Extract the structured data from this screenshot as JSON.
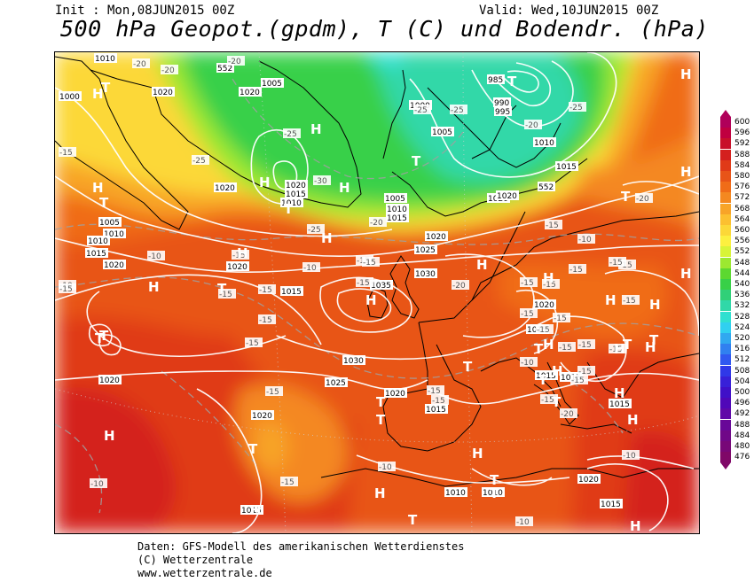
{
  "header": {
    "init": "Init : Mon,08JUN2015 00Z",
    "valid": "Valid: Wed,10JUN2015 00Z",
    "title": "500 hPa Geopot.(gpdm), T (C) und Bodendr. (hPa)"
  },
  "legend": {
    "levels": [
      {
        "value": "600",
        "color": "#b0005a"
      },
      {
        "value": "596",
        "color": "#c00040"
      },
      {
        "value": "592",
        "color": "#c8102a"
      },
      {
        "value": "588",
        "color": "#d4201e"
      },
      {
        "value": "584",
        "color": "#e03a18"
      },
      {
        "value": "580",
        "color": "#e85418"
      },
      {
        "value": "576",
        "color": "#f06c18"
      },
      {
        "value": "572",
        "color": "#f48820"
      },
      {
        "value": "568",
        "color": "#f8a428"
      },
      {
        "value": "564",
        "color": "#fcc030"
      },
      {
        "value": "560",
        "color": "#fcd838"
      },
      {
        "value": "556",
        "color": "#fcf040"
      },
      {
        "value": "552",
        "color": "#d8f438"
      },
      {
        "value": "548",
        "color": "#9ce830"
      },
      {
        "value": "544",
        "color": "#5cd830"
      },
      {
        "value": "540",
        "color": "#38d048"
      },
      {
        "value": "536",
        "color": "#30d078"
      },
      {
        "value": "532",
        "color": "#30d8a8"
      },
      {
        "value": "528",
        "color": "#30e0d0"
      },
      {
        "value": "524",
        "color": "#30d0f0"
      },
      {
        "value": "520",
        "color": "#30a8f0"
      },
      {
        "value": "516",
        "color": "#3080f0"
      },
      {
        "value": "512",
        "color": "#3058f0"
      },
      {
        "value": "508",
        "color": "#3038e8"
      },
      {
        "value": "504",
        "color": "#3820d8"
      },
      {
        "value": "500",
        "color": "#4010c8"
      },
      {
        "value": "496",
        "color": "#5008b8"
      },
      {
        "value": "492",
        "color": "#6008a8"
      },
      {
        "value": "488",
        "color": "#680898"
      },
      {
        "value": "484",
        "color": "#700888"
      },
      {
        "value": "480",
        "color": "#780878"
      },
      {
        "value": "476",
        "color": "#800868"
      }
    ]
  },
  "map": {
    "pressure_labels": [
      "1010",
      "1000",
      "1020",
      "552",
      "1020",
      "1005",
      "985",
      "990",
      "995",
      "1000",
      "1020",
      "1005",
      "1010",
      "1015",
      "1020",
      "1015",
      "1010",
      "1005",
      "1010",
      "1015",
      "1020",
      "1025",
      "1030",
      "1035",
      "1020",
      "1015",
      "1020",
      "1015",
      "1030",
      "1025",
      "1020",
      "1015",
      "1020",
      "1015",
      "1010",
      "1010",
      "1015",
      "1020",
      "1015",
      "1010",
      "552",
      "1020",
      "1005",
      "1010",
      "1015",
      "1020",
      "1020",
      "1015",
      "1015",
      "1020"
    ],
    "temp_labels": [
      "-20",
      "-20",
      "-20",
      "-25",
      "-25",
      "-25",
      "-25",
      "-20",
      "-15",
      "-25",
      "-30",
      "-25",
      "-20",
      "-15",
      "-10",
      "-15",
      "-20",
      "-10",
      "-15",
      "-10",
      "-15",
      "-15",
      "-15",
      "-10",
      "-15",
      "-15",
      "-15",
      "-20",
      "-15",
      "-15",
      "-15",
      "-15",
      "-15",
      "-15",
      "-10",
      "-15",
      "-15",
      "-15",
      "-15",
      "-15",
      "-15",
      "-20",
      "-15",
      "-15",
      "-15",
      "-10",
      "-15",
      "-10",
      "-15",
      "-10",
      "-15",
      "-10",
      "-15",
      "-15"
    ],
    "high_markers": [
      "H",
      "H",
      "H",
      "H",
      "H",
      "H",
      "H",
      "H",
      "H",
      "H",
      "H",
      "H",
      "H",
      "H",
      "H",
      "H",
      "H",
      "H",
      "H",
      "H",
      "H",
      "H",
      "H",
      "H",
      "H",
      "H",
      "H"
    ],
    "low_markers": [
      "T",
      "T",
      "T",
      "T",
      "T",
      "T",
      "T",
      "T",
      "T",
      "T",
      "T",
      "T",
      "T",
      "T",
      "T",
      "T",
      "T",
      "T",
      "T",
      "T",
      "T"
    ]
  },
  "footer": {
    "line1": "Daten: GFS-Modell des amerikanischen Wetterdienstes",
    "line2": "(C) Wetterzentrale",
    "line3": "www.wetterzentrale.de"
  }
}
